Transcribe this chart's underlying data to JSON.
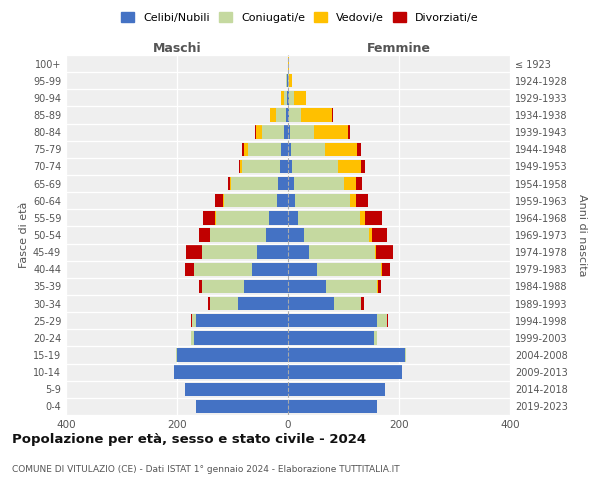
{
  "age_groups": [
    "0-4",
    "5-9",
    "10-14",
    "15-19",
    "20-24",
    "25-29",
    "30-34",
    "35-39",
    "40-44",
    "45-49",
    "50-54",
    "55-59",
    "60-64",
    "65-69",
    "70-74",
    "75-79",
    "80-84",
    "85-89",
    "90-94",
    "95-99",
    "100+"
  ],
  "birth_years": [
    "2019-2023",
    "2014-2018",
    "2009-2013",
    "2004-2008",
    "1999-2003",
    "1994-1998",
    "1989-1993",
    "1984-1988",
    "1979-1983",
    "1974-1978",
    "1969-1973",
    "1964-1968",
    "1959-1963",
    "1954-1958",
    "1949-1953",
    "1944-1948",
    "1939-1943",
    "1934-1938",
    "1929-1933",
    "1924-1928",
    "≤ 1923"
  ],
  "maschi": {
    "celibi": [
      165,
      185,
      205,
      200,
      170,
      165,
      90,
      80,
      65,
      55,
      40,
      35,
      20,
      18,
      14,
      12,
      8,
      4,
      2,
      1,
      0
    ],
    "coniugati": [
      0,
      0,
      0,
      2,
      5,
      8,
      50,
      75,
      105,
      100,
      100,
      95,
      95,
      85,
      68,
      60,
      38,
      18,
      6,
      2,
      0
    ],
    "vedovi": [
      0,
      0,
      0,
      0,
      0,
      0,
      0,
      0,
      0,
      0,
      1,
      1,
      2,
      2,
      5,
      8,
      12,
      10,
      4,
      0,
      0
    ],
    "divorziati": [
      0,
      0,
      0,
      0,
      0,
      2,
      5,
      5,
      15,
      28,
      20,
      22,
      14,
      3,
      2,
      3,
      2,
      1,
      0,
      0,
      0
    ]
  },
  "femmine": {
    "nubili": [
      160,
      175,
      205,
      210,
      155,
      160,
      82,
      68,
      52,
      38,
      28,
      18,
      12,
      10,
      8,
      5,
      4,
      2,
      2,
      0,
      0
    ],
    "coniugate": [
      0,
      0,
      0,
      2,
      5,
      18,
      50,
      92,
      115,
      118,
      118,
      112,
      100,
      90,
      82,
      62,
      42,
      22,
      8,
      2,
      0
    ],
    "vedove": [
      0,
      0,
      0,
      0,
      0,
      0,
      0,
      2,
      2,
      2,
      5,
      8,
      10,
      22,
      42,
      58,
      62,
      55,
      22,
      5,
      1
    ],
    "divorziate": [
      0,
      0,
      0,
      0,
      0,
      2,
      5,
      5,
      15,
      32,
      28,
      32,
      22,
      12,
      6,
      6,
      3,
      2,
      1,
      0,
      0
    ]
  },
  "colors": {
    "celibi": "#4472c4",
    "coniugati": "#c5d9a0",
    "vedovi": "#ffc000",
    "divorziati": "#c00000"
  },
  "legend_labels": [
    "Celibi/Nubili",
    "Coniugati/e",
    "Vedovi/e",
    "Divorziati/e"
  ],
  "xlim": 400,
  "title": "Popolazione per età, sesso e stato civile - 2024",
  "subtitle": "COMUNE DI VITULAZIO (CE) - Dati ISTAT 1° gennaio 2024 - Elaborazione TUTTITALIA.IT",
  "ylabel_left": "Fasce di età",
  "ylabel_right": "Anni di nascita",
  "xlabel_left": "Maschi",
  "xlabel_right": "Femmine",
  "background_color": "#ffffff",
  "plot_bg_color": "#efefef"
}
